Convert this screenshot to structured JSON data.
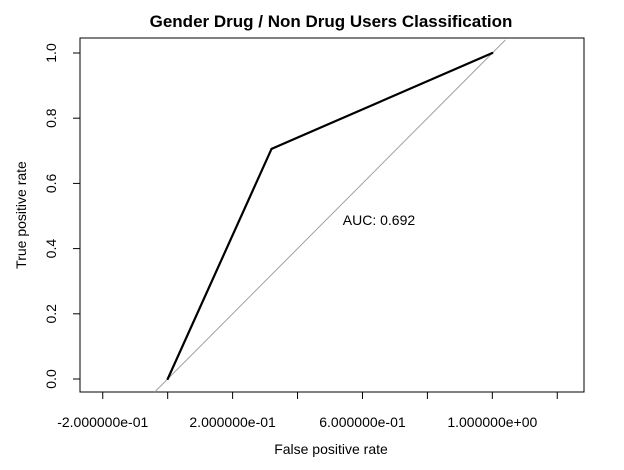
{
  "chart_data": {
    "type": "line",
    "title": "Gender Drug / Non Drug Users Classification",
    "xlabel": "False positive rate",
    "ylabel": "True positive rate",
    "xlim": [
      -0.2,
      1.2
    ],
    "ylim": [
      0.0,
      1.0
    ],
    "x_ticks": [
      {
        "value": -0.2,
        "label": "-2.000000e-01"
      },
      {
        "value": 0.0,
        "label": ""
      },
      {
        "value": 0.2,
        "label": "2.000000e-01"
      },
      {
        "value": 0.4,
        "label": ""
      },
      {
        "value": 0.6,
        "label": "6.000000e-01"
      },
      {
        "value": 0.8,
        "label": ""
      },
      {
        "value": 1.0,
        "label": "1.000000e+00"
      },
      {
        "value": 1.2,
        "label": ""
      }
    ],
    "y_ticks": [
      {
        "value": 0.0,
        "label": "0.0"
      },
      {
        "value": 0.2,
        "label": "0.2"
      },
      {
        "value": 0.4,
        "label": "0.4"
      },
      {
        "value": 0.6,
        "label": "0.6"
      },
      {
        "value": 0.8,
        "label": "0.8"
      },
      {
        "value": 1.0,
        "label": "1.0"
      }
    ],
    "grid": false,
    "series": [
      {
        "x": [
          0.0,
          0.32,
          1.0
        ],
        "y": [
          0.0,
          0.706,
          1.0
        ],
        "color": "#000000"
      }
    ],
    "reference_line": {
      "x": [
        -0.04,
        1.04
      ],
      "y": [
        -0.04,
        1.04
      ],
      "color": "#a0a0a0"
    },
    "annotation": {
      "text": "AUC: 0.692",
      "x": 0.62,
      "y": 0.47
    }
  }
}
